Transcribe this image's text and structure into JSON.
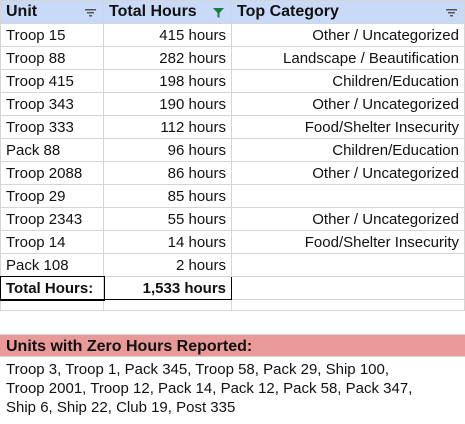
{
  "headers": {
    "unit": "Unit",
    "total_hours": "Total Hours",
    "top_category": "Top Category"
  },
  "rows": [
    {
      "unit": "Troop 15",
      "hours": "415 hours",
      "category": "Other / Uncategorized"
    },
    {
      "unit": "Troop 88",
      "hours": "282 hours",
      "category": "Landscape / Beautification"
    },
    {
      "unit": "Troop 415",
      "hours": "198 hours",
      "category": "Children/Education"
    },
    {
      "unit": "Troop 343",
      "hours": "190 hours",
      "category": "Other / Uncategorized"
    },
    {
      "unit": "Troop 333",
      "hours": "112 hours",
      "category": "Food/Shelter Insecurity"
    },
    {
      "unit": "Pack 88",
      "hours": "96 hours",
      "category": "Children/Education"
    },
    {
      "unit": "Troop 2088",
      "hours": "86 hours",
      "category": "Other / Uncategorized"
    },
    {
      "unit": "Troop 29",
      "hours": "85 hours",
      "category": ""
    },
    {
      "unit": "Troop 2343",
      "hours": "55 hours",
      "category": "Other / Uncategorized"
    },
    {
      "unit": "Troop 14",
      "hours": "14 hours",
      "category": "Food/Shelter Insecurity"
    },
    {
      "unit": "Pack 108",
      "hours": "2 hours",
      "category": ""
    }
  ],
  "total": {
    "label": "Total Hours:",
    "value": "1,533 hours"
  },
  "zero_section": {
    "title": "Units with Zero Hours Reported:",
    "lines": [
      "Troop 3, Troop 1, Pack 345, Troop 58, Pack 29, Ship 100,",
      "Troop 2001, Troop 12, Pack 14, Pack 12, Pack 58, Pack 347,",
      "Ship 6, Ship 22, Club 19, Post 335"
    ]
  },
  "colors": {
    "header_bg": "#c9daf8",
    "zero_header_bg": "#ea9999",
    "active_filter": "#188038"
  }
}
